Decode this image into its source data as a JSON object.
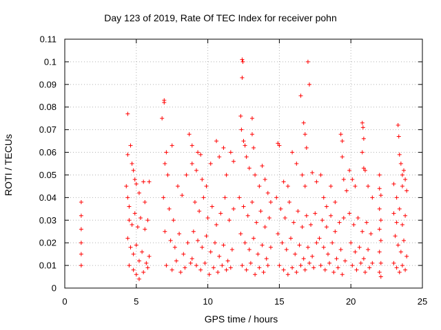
{
  "chart_data": {
    "type": "scatter",
    "title": "Day 123 of 2019, Rate Of TEC Index for receiver pohn",
    "xlabel": "GPS time / hours",
    "ylabel": "ROTI / TECUs",
    "xlim": [
      0,
      25
    ],
    "ylim": [
      0,
      0.11
    ],
    "xticks": [
      0,
      5,
      10,
      15,
      20,
      25
    ],
    "xtick_labels": [
      "0",
      "5",
      "10",
      "15",
      "20",
      "25"
    ],
    "yticks": [
      0,
      0.01,
      0.02,
      0.03,
      0.04,
      0.05,
      0.06,
      0.07,
      0.08,
      0.09,
      0.1,
      0.11
    ],
    "ytick_labels": [
      "0",
      "0.01",
      "0.02",
      "0.03",
      "0.04",
      "0.05",
      "0.06",
      "0.07",
      "0.08",
      "0.09",
      "0.1",
      "0.11"
    ],
    "grid": true,
    "marker": "+",
    "color": "#ff0000",
    "series": [
      {
        "name": "ROTI",
        "points": [
          [
            1.15,
            0.038
          ],
          [
            1.15,
            0.032
          ],
          [
            1.15,
            0.026
          ],
          [
            1.15,
            0.02
          ],
          [
            1.15,
            0.015
          ],
          [
            1.15,
            0.01
          ],
          [
            4.4,
            0.077
          ],
          [
            4.4,
            0.059
          ],
          [
            4.3,
            0.045
          ],
          [
            4.4,
            0.04
          ],
          [
            4.5,
            0.036
          ],
          [
            4.6,
            0.063
          ],
          [
            4.7,
            0.055
          ],
          [
            4.8,
            0.052
          ],
          [
            4.9,
            0.048
          ],
          [
            5.0,
            0.046
          ],
          [
            5.2,
            0.042
          ],
          [
            5.5,
            0.047
          ],
          [
            5.6,
            0.038
          ],
          [
            5.9,
            0.047
          ],
          [
            4.5,
            0.03
          ],
          [
            4.7,
            0.028
          ],
          [
            4.9,
            0.033
          ],
          [
            5.1,
            0.027
          ],
          [
            5.3,
            0.031
          ],
          [
            5.6,
            0.026
          ],
          [
            5.8,
            0.03
          ],
          [
            4.4,
            0.022
          ],
          [
            4.6,
            0.018
          ],
          [
            4.8,
            0.015
          ],
          [
            5.0,
            0.019
          ],
          [
            5.2,
            0.012
          ],
          [
            5.4,
            0.016
          ],
          [
            5.7,
            0.011
          ],
          [
            5.9,
            0.014
          ],
          [
            4.5,
            0.01
          ],
          [
            4.8,
            0.008
          ],
          [
            5.0,
            0.006
          ],
          [
            5.2,
            0.004
          ],
          [
            5.5,
            0.007
          ],
          [
            5.8,
            0.009
          ],
          [
            6.8,
            0.075
          ],
          [
            6.95,
            0.083
          ],
          [
            6.95,
            0.082
          ],
          [
            7.0,
            0.055
          ],
          [
            7.1,
            0.06
          ],
          [
            7.2,
            0.05
          ],
          [
            7.5,
            0.063
          ],
          [
            6.9,
            0.04
          ],
          [
            7.3,
            0.035
          ],
          [
            7.6,
            0.03
          ],
          [
            7.9,
            0.045
          ],
          [
            8.2,
            0.041
          ],
          [
            8.5,
            0.05
          ],
          [
            8.9,
            0.055
          ],
          [
            7.0,
            0.025
          ],
          [
            7.4,
            0.021
          ],
          [
            7.7,
            0.018
          ],
          [
            8.0,
            0.024
          ],
          [
            8.3,
            0.015
          ],
          [
            8.6,
            0.02
          ],
          [
            8.9,
            0.013
          ],
          [
            7.1,
            0.01
          ],
          [
            7.5,
            0.008
          ],
          [
            7.8,
            0.012
          ],
          [
            8.1,
            0.007
          ],
          [
            8.4,
            0.009
          ],
          [
            8.8,
            0.011
          ],
          [
            8.7,
            0.068
          ],
          [
            8.9,
            0.063
          ],
          [
            9.3,
            0.06
          ],
          [
            9.5,
            0.059
          ],
          [
            9.2,
            0.052
          ],
          [
            9.6,
            0.048
          ],
          [
            9.9,
            0.045
          ],
          [
            10.2,
            0.055
          ],
          [
            10.6,
            0.065
          ],
          [
            10.8,
            0.058
          ],
          [
            11.1,
            0.062
          ],
          [
            11.3,
            0.05
          ],
          [
            11.6,
            0.06
          ],
          [
            11.8,
            0.056
          ],
          [
            9.1,
            0.038
          ],
          [
            9.4,
            0.034
          ],
          [
            9.7,
            0.04
          ],
          [
            10.0,
            0.031
          ],
          [
            10.3,
            0.036
          ],
          [
            10.6,
            0.028
          ],
          [
            10.9,
            0.033
          ],
          [
            11.2,
            0.04
          ],
          [
            11.5,
            0.03
          ],
          [
            11.8,
            0.035
          ],
          [
            9.0,
            0.025
          ],
          [
            9.3,
            0.021
          ],
          [
            9.6,
            0.018
          ],
          [
            9.9,
            0.023
          ],
          [
            10.2,
            0.016
          ],
          [
            10.5,
            0.02
          ],
          [
            10.8,
            0.014
          ],
          [
            11.1,
            0.019
          ],
          [
            11.4,
            0.012
          ],
          [
            11.7,
            0.017
          ],
          [
            9.2,
            0.01
          ],
          [
            9.5,
            0.008
          ],
          [
            9.8,
            0.011
          ],
          [
            10.1,
            0.006
          ],
          [
            10.4,
            0.009
          ],
          [
            10.7,
            0.007
          ],
          [
            11.0,
            0.01
          ],
          [
            11.3,
            0.008
          ],
          [
            11.6,
            0.009
          ],
          [
            12.4,
            0.101
          ],
          [
            12.45,
            0.1
          ],
          [
            12.4,
            0.093
          ],
          [
            12.3,
            0.076
          ],
          [
            12.35,
            0.07
          ],
          [
            12.5,
            0.065
          ],
          [
            12.6,
            0.063
          ],
          [
            12.7,
            0.058
          ],
          [
            13.1,
            0.075
          ],
          [
            13.1,
            0.068
          ],
          [
            13.2,
            0.062
          ],
          [
            12.9,
            0.053
          ],
          [
            13.3,
            0.05
          ],
          [
            13.6,
            0.045
          ],
          [
            13.8,
            0.054
          ],
          [
            14.0,
            0.048
          ],
          [
            14.2,
            0.042
          ],
          [
            14.4,
            0.038
          ],
          [
            12.2,
            0.04
          ],
          [
            12.5,
            0.036
          ],
          [
            12.8,
            0.032
          ],
          [
            13.1,
            0.038
          ],
          [
            13.4,
            0.029
          ],
          [
            13.7,
            0.034
          ],
          [
            14.0,
            0.027
          ],
          [
            14.3,
            0.031
          ],
          [
            12.3,
            0.024
          ],
          [
            12.6,
            0.02
          ],
          [
            12.9,
            0.017
          ],
          [
            13.2,
            0.022
          ],
          [
            13.5,
            0.015
          ],
          [
            13.8,
            0.019
          ],
          [
            14.1,
            0.013
          ],
          [
            14.4,
            0.018
          ],
          [
            12.4,
            0.01
          ],
          [
            12.7,
            0.008
          ],
          [
            13.0,
            0.011
          ],
          [
            13.3,
            0.006
          ],
          [
            13.6,
            0.009
          ],
          [
            13.9,
            0.007
          ],
          [
            14.2,
            0.01
          ],
          [
            14.9,
            0.064
          ],
          [
            15.0,
            0.063
          ],
          [
            15.3,
            0.047
          ],
          [
            15.6,
            0.045
          ],
          [
            15.9,
            0.06
          ],
          [
            16.2,
            0.055
          ],
          [
            16.5,
            0.085
          ],
          [
            16.7,
            0.073
          ],
          [
            16.8,
            0.068
          ],
          [
            16.9,
            0.062
          ],
          [
            16.6,
            0.05
          ],
          [
            16.8,
            0.045
          ],
          [
            17.0,
            0.1
          ],
          [
            17.1,
            0.09
          ],
          [
            17.3,
            0.051
          ],
          [
            17.6,
            0.047
          ],
          [
            14.8,
            0.04
          ],
          [
            15.1,
            0.035
          ],
          [
            15.4,
            0.031
          ],
          [
            15.7,
            0.038
          ],
          [
            16.0,
            0.029
          ],
          [
            16.3,
            0.034
          ],
          [
            16.6,
            0.027
          ],
          [
            16.9,
            0.032
          ],
          [
            17.2,
            0.028
          ],
          [
            17.5,
            0.033
          ],
          [
            14.9,
            0.024
          ],
          [
            15.2,
            0.02
          ],
          [
            15.5,
            0.017
          ],
          [
            15.8,
            0.022
          ],
          [
            16.1,
            0.015
          ],
          [
            16.4,
            0.019
          ],
          [
            16.7,
            0.013
          ],
          [
            17.0,
            0.018
          ],
          [
            17.3,
            0.014
          ],
          [
            17.6,
            0.02
          ],
          [
            15.0,
            0.01
          ],
          [
            15.3,
            0.008
          ],
          [
            15.6,
            0.006
          ],
          [
            15.9,
            0.009
          ],
          [
            16.2,
            0.007
          ],
          [
            16.5,
            0.01
          ],
          [
            16.8,
            0.008
          ],
          [
            17.1,
            0.011
          ],
          [
            17.4,
            0.009
          ],
          [
            17.9,
            0.05
          ],
          [
            18.1,
            0.04
          ],
          [
            18.3,
            0.036
          ],
          [
            18.6,
            0.045
          ],
          [
            18.9,
            0.038
          ],
          [
            19.3,
            0.068
          ],
          [
            19.4,
            0.065
          ],
          [
            19.4,
            0.058
          ],
          [
            19.5,
            0.048
          ],
          [
            19.7,
            0.043
          ],
          [
            18.0,
            0.03
          ],
          [
            18.3,
            0.027
          ],
          [
            18.6,
            0.032
          ],
          [
            18.9,
            0.025
          ],
          [
            19.2,
            0.029
          ],
          [
            19.5,
            0.031
          ],
          [
            17.8,
            0.022
          ],
          [
            18.1,
            0.018
          ],
          [
            18.4,
            0.015
          ],
          [
            18.7,
            0.02
          ],
          [
            19.0,
            0.013
          ],
          [
            19.3,
            0.017
          ],
          [
            19.6,
            0.012
          ],
          [
            17.9,
            0.01
          ],
          [
            18.2,
            0.008
          ],
          [
            18.5,
            0.011
          ],
          [
            18.8,
            0.007
          ],
          [
            19.1,
            0.009
          ],
          [
            19.4,
            0.006
          ],
          [
            19.9,
            0.052
          ],
          [
            20.1,
            0.048
          ],
          [
            20.3,
            0.045
          ],
          [
            20.8,
            0.073
          ],
          [
            20.85,
            0.071
          ],
          [
            20.9,
            0.066
          ],
          [
            20.8,
            0.06
          ],
          [
            20.9,
            0.053
          ],
          [
            21.0,
            0.052
          ],
          [
            21.2,
            0.045
          ],
          [
            21.5,
            0.04
          ],
          [
            19.9,
            0.033
          ],
          [
            20.2,
            0.028
          ],
          [
            20.5,
            0.031
          ],
          [
            20.8,
            0.025
          ],
          [
            21.1,
            0.029
          ],
          [
            21.4,
            0.024
          ],
          [
            20.0,
            0.02
          ],
          [
            20.3,
            0.016
          ],
          [
            20.6,
            0.018
          ],
          [
            20.9,
            0.013
          ],
          [
            21.2,
            0.017
          ],
          [
            21.5,
            0.011
          ],
          [
            20.1,
            0.01
          ],
          [
            20.4,
            0.008
          ],
          [
            20.7,
            0.011
          ],
          [
            21.0,
            0.007
          ],
          [
            21.3,
            0.009
          ],
          [
            22.0,
            0.05
          ],
          [
            22.0,
            0.044
          ],
          [
            22.1,
            0.041
          ],
          [
            22.0,
            0.035
          ],
          [
            22.1,
            0.03
          ],
          [
            22.0,
            0.026
          ],
          [
            22.1,
            0.021
          ],
          [
            22.0,
            0.016
          ],
          [
            22.1,
            0.011
          ],
          [
            22.0,
            0.007
          ],
          [
            22.1,
            0.005
          ],
          [
            23.0,
            0.046
          ],
          [
            23.2,
            0.04
          ],
          [
            23.3,
            0.072
          ],
          [
            23.35,
            0.067
          ],
          [
            23.4,
            0.059
          ],
          [
            23.5,
            0.055
          ],
          [
            23.6,
            0.05
          ],
          [
            23.6,
            0.045
          ],
          [
            23.7,
            0.052
          ],
          [
            23.8,
            0.048
          ],
          [
            23.9,
            0.043
          ],
          [
            23.0,
            0.033
          ],
          [
            23.2,
            0.029
          ],
          [
            23.4,
            0.035
          ],
          [
            23.6,
            0.028
          ],
          [
            23.8,
            0.032
          ],
          [
            23.1,
            0.023
          ],
          [
            23.3,
            0.019
          ],
          [
            23.5,
            0.016
          ],
          [
            23.7,
            0.021
          ],
          [
            23.9,
            0.014
          ],
          [
            23.0,
            0.011
          ],
          [
            23.2,
            0.009
          ],
          [
            23.4,
            0.007
          ],
          [
            23.6,
            0.01
          ],
          [
            23.8,
            0.008
          ]
        ]
      }
    ]
  }
}
